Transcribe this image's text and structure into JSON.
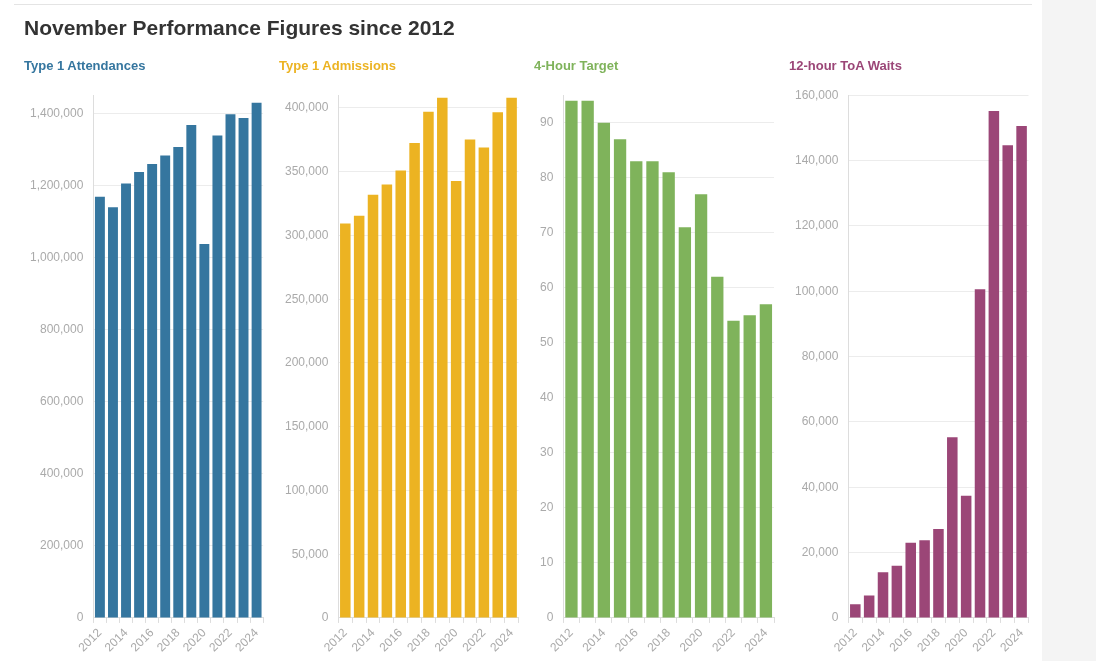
{
  "chart_data": [
    {
      "type": "bar",
      "title": "November Performance Figures since 2012",
      "subtitle": "Type 1 Attendances",
      "categories": [
        "2012",
        null,
        "2014",
        null,
        "2016",
        null,
        "2018",
        null,
        "2020",
        null,
        "2022",
        null,
        "2024"
      ],
      "values": [
        1168000,
        1139000,
        1205000,
        1237000,
        1259000,
        1283000,
        1306000,
        1367000,
        1037000,
        1338000,
        1397000,
        1387000,
        1429000
      ],
      "color": "#35769f",
      "ylim": [
        0,
        1450000
      ],
      "yticks": [
        0,
        {
          "value": 200000,
          "label": "200,000"
        },
        {
          "value": 400000,
          "label": "400,000"
        },
        {
          "value": 600000,
          "label": "600,000"
        },
        {
          "value": 800000,
          "label": "800,000"
        },
        {
          "value": 1000000,
          "label": "1,000,000"
        },
        {
          "value": 1200000,
          "label": "1,200,000"
        },
        {
          "value": 1400000,
          "label": "1,400,000"
        }
      ],
      "grid": "y"
    },
    {
      "type": "bar",
      "subtitle": "Type 1 Admissions",
      "categories": [
        "2012",
        null,
        "2014",
        null,
        "2016",
        null,
        "2018",
        null,
        "2020",
        null,
        "2022",
        null,
        "2024"
      ],
      "values": [
        309400,
        315400,
        332000,
        340000,
        351000,
        372600,
        397000,
        408000,
        342800,
        375300,
        369000,
        396700,
        408000
      ],
      "color": "#ecb322",
      "ylim": [
        0,
        410000
      ],
      "yticks": [
        0,
        {
          "value": 50000,
          "label": "50,000"
        },
        {
          "value": 100000,
          "label": "100,000"
        },
        {
          "value": 150000,
          "label": "150,000"
        },
        {
          "value": 200000,
          "label": "200,000"
        },
        {
          "value": 250000,
          "label": "250,000"
        },
        {
          "value": 300000,
          "label": "300,000"
        },
        {
          "value": 350000,
          "label": "350,000"
        },
        {
          "value": 400000,
          "label": "400,000"
        }
      ],
      "grid": "y"
    },
    {
      "type": "bar",
      "subtitle": "4-Hour Target",
      "categories": [
        "2012",
        null,
        "2014",
        null,
        "2016",
        null,
        "2018",
        null,
        "2020",
        null,
        "2022",
        null,
        "2024"
      ],
      "values": [
        94,
        94,
        90,
        87,
        83,
        83,
        81,
        71,
        77,
        62,
        54,
        55,
        57
      ],
      "color": "#7fb35b",
      "ylim": [
        0,
        95
      ],
      "yticks": [
        0,
        10,
        20,
        30,
        40,
        50,
        60,
        70,
        80,
        90
      ],
      "grid": "y"
    },
    {
      "type": "bar",
      "subtitle": "12-hour ToA Waits",
      "categories": [
        "2012",
        null,
        "2014",
        null,
        "2016",
        null,
        "2018",
        null,
        "2020",
        null,
        "2022",
        null,
        "2024"
      ],
      "values": [
        4200,
        6900,
        14000,
        16000,
        23000,
        23800,
        27200,
        55300,
        37400,
        100600,
        155200,
        144700,
        150600
      ],
      "color": "#9b4677",
      "ylim": [
        0,
        160000
      ],
      "yticks": [
        0,
        {
          "value": 20000,
          "label": "20,000"
        },
        {
          "value": 40000,
          "label": "40,000"
        },
        {
          "value": 60000,
          "label": "60,000"
        },
        {
          "value": 80000,
          "label": "80,000"
        },
        {
          "value": 100000,
          "label": "100,000"
        },
        {
          "value": 120000,
          "label": "120,000"
        },
        {
          "value": 140000,
          "label": "140,000"
        },
        {
          "value": 160000,
          "label": "160,000"
        }
      ],
      "grid": "y"
    }
  ]
}
